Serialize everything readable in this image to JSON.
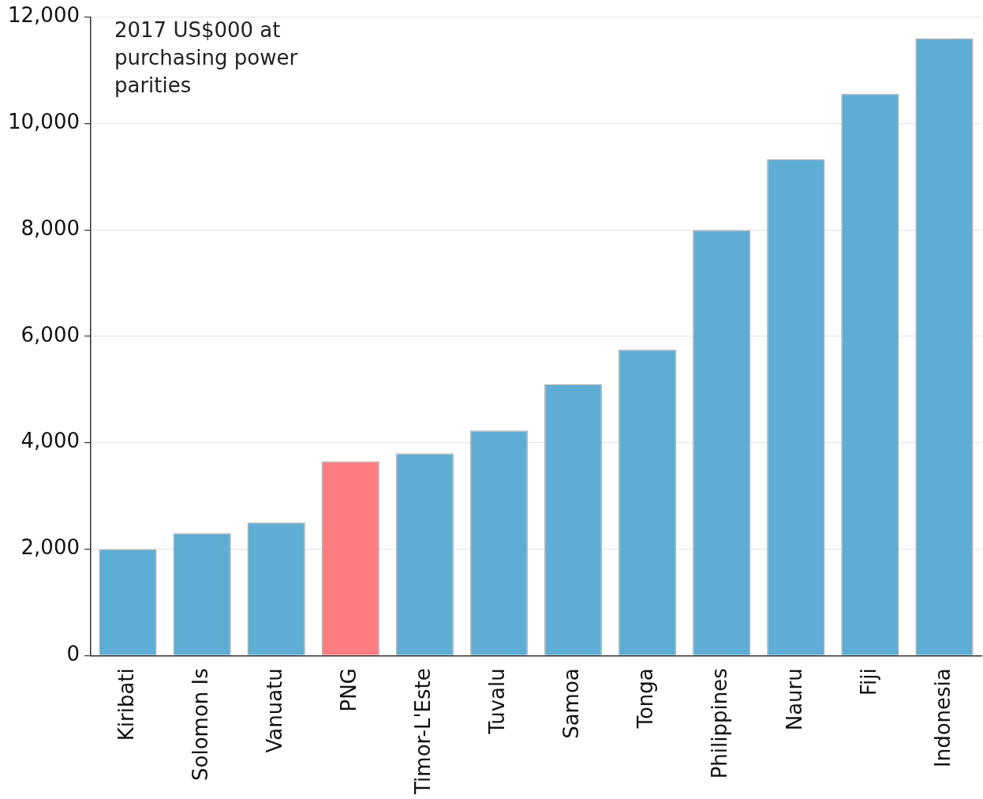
{
  "chart_data": {
    "type": "bar",
    "categories": [
      "Kiribati",
      "Solomon Is",
      "Vanuatu",
      "PNG",
      "Timor-L'Este",
      "Tuvalu",
      "Samoa",
      "Tonga",
      "Philippines",
      "Nauru",
      "Fiji",
      "Indonesia"
    ],
    "values": [
      2000,
      2300,
      2500,
      3650,
      3800,
      4230,
      5100,
      5750,
      8000,
      9330,
      10560,
      11600
    ],
    "colors": [
      "#5eadd5",
      "#5eadd5",
      "#5eadd5",
      "#ff7c80",
      "#5eadd5",
      "#5eadd5",
      "#5eadd5",
      "#5eadd5",
      "#5eadd5",
      "#5eadd5",
      "#5eadd5",
      "#5eadd5"
    ],
    "ylim": [
      0,
      12000
    ],
    "yticks": [
      {
        "value": 0,
        "label": "0"
      },
      {
        "value": 2000,
        "label": "2,000"
      },
      {
        "value": 4000,
        "label": "4,000"
      },
      {
        "value": 6000,
        "label": "6,000"
      },
      {
        "value": 8000,
        "label": "8,000"
      },
      {
        "value": 10000,
        "label": "10,000"
      },
      {
        "value": 12000,
        "label": "12,000"
      }
    ],
    "grid": "y",
    "legend": false,
    "annotations": [
      "2017 US$000 at\npurchasing power\nparities"
    ]
  }
}
